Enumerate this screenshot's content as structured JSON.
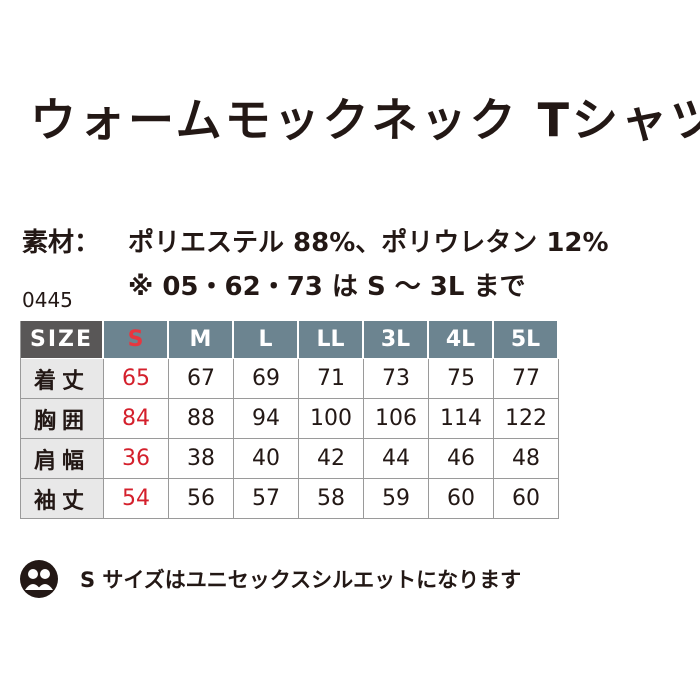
{
  "header": {
    "title": "ウォームモックネック Tシャツ"
  },
  "material": {
    "label": "素材：",
    "text": "ポリエステル 88%、ポリウレタン 12%",
    "note": "※ 05・62・73 は S ～ 3L まで"
  },
  "product_code": "0445",
  "table": {
    "header": [
      "SIZE",
      "S",
      "M",
      "L",
      "LL",
      "3L",
      "4L",
      "5L"
    ],
    "rows": [
      [
        "着丈",
        65,
        67,
        69,
        71,
        73,
        75,
        77
      ],
      [
        "胸囲",
        84,
        88,
        94,
        100,
        106,
        114,
        122
      ],
      [
        "肩幅",
        36,
        38,
        40,
        42,
        44,
        46,
        48
      ],
      [
        "袖丈",
        54,
        56,
        57,
        58,
        59,
        60,
        60
      ]
    ]
  },
  "note": "S サイズはユニセックスシルエットになります"
}
